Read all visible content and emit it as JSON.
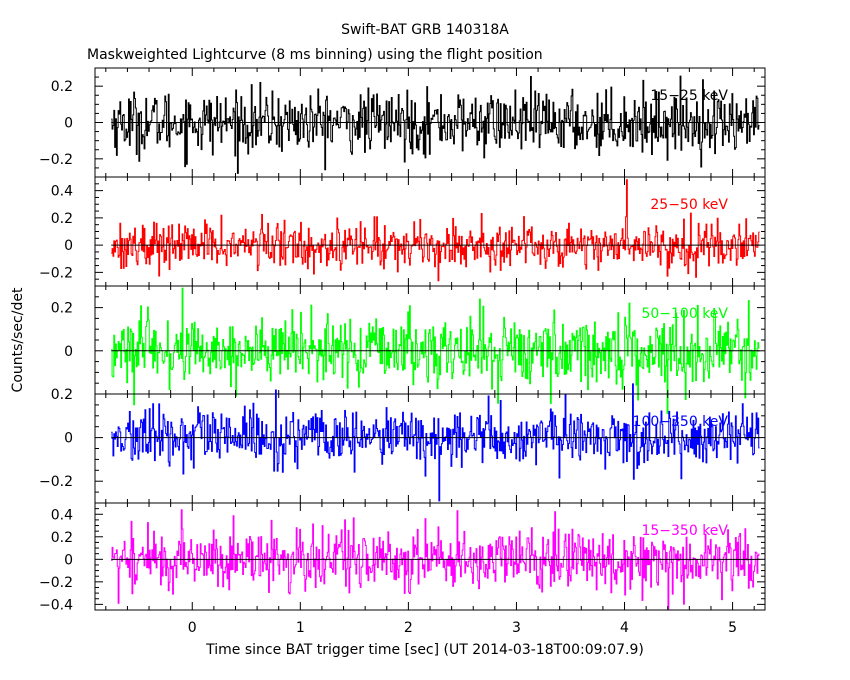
{
  "chart_data": {
    "type": "line",
    "title": "Swift-BAT GRB 140318A",
    "subtitle": "Maskweighted Lightcurve (8 ms binning) using the flight position",
    "xlabel": "Time since BAT trigger time [sec] (UT 2014-03-18T00:09:07.9)",
    "ylabel": "Counts/sec/det",
    "xlim": [
      -0.9,
      5.3
    ],
    "x_ticks": [
      0,
      1,
      2,
      3,
      4,
      5
    ],
    "x_minor_step": 0.2,
    "bin_size_sec": 0.008,
    "x_start": -0.75,
    "x_end": 5.25,
    "grid": false,
    "panels": [
      {
        "name": "15-25 keV",
        "band_label": "15−25 keV",
        "color": "#000000",
        "ylim": [
          -0.3,
          0.3
        ],
        "y_ticks": [
          -0.2,
          0,
          0.2
        ],
        "y_tick_labels": [
          "−0.2",
          "0",
          "0.2"
        ],
        "y_minor_step": 0.05,
        "noise_sigma": 0.085,
        "noise_max": 0.28,
        "spikes": []
      },
      {
        "name": "25-50 keV",
        "band_label": "25−50 keV",
        "color": "#ff0000",
        "ylim": [
          -0.3,
          0.5
        ],
        "y_ticks": [
          -0.2,
          0,
          0.2,
          0.4
        ],
        "y_tick_labels": [
          "−0.2",
          "0",
          "0.2",
          "0.4"
        ],
        "y_minor_step": 0.05,
        "noise_sigma": 0.085,
        "noise_max": 0.33,
        "spikes": [
          {
            "x": 4.02,
            "y": 0.48
          }
        ]
      },
      {
        "name": "50-100 keV",
        "band_label": "50−100 keV",
        "color": "#00ff00",
        "ylim": [
          -0.2,
          0.3
        ],
        "y_ticks": [
          0,
          0.2
        ],
        "y_tick_labels": [
          "0",
          "0.2"
        ],
        "y_minor_step": 0.05,
        "noise_sigma": 0.08,
        "noise_max": 0.29,
        "spikes": []
      },
      {
        "name": "100-350 keV",
        "band_label": "100−350 keV",
        "color": "#0000ff",
        "ylim": [
          -0.3,
          0.2
        ],
        "y_ticks": [
          -0.2,
          0,
          0.2
        ],
        "y_tick_labels": [
          "−0.2",
          "0",
          "0.2"
        ],
        "y_minor_step": 0.05,
        "noise_sigma": 0.065,
        "noise_max": 0.25,
        "spikes": [
          {
            "x": 2.28,
            "y": -0.29
          }
        ]
      },
      {
        "name": "15-350 keV",
        "band_label": "15−350 keV",
        "color": "#ff00ff",
        "ylim": [
          -0.45,
          0.5
        ],
        "y_ticks": [
          -0.4,
          -0.2,
          0,
          0.2,
          0.4
        ],
        "y_tick_labels": [
          "−0.4",
          "−0.2",
          "0",
          "0.2",
          "0.4"
        ],
        "y_minor_step": 0.05,
        "noise_sigma": 0.14,
        "noise_max": 0.44,
        "spikes": []
      }
    ]
  }
}
